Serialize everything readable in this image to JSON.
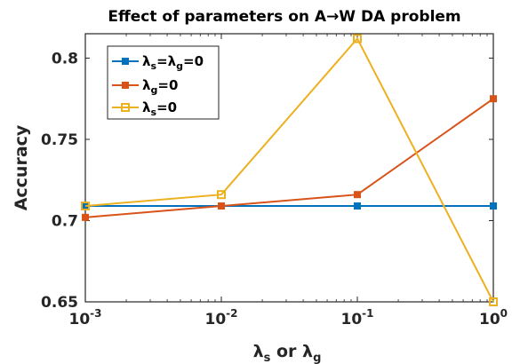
{
  "chart_data": {
    "type": "line",
    "title": "Effect of parameters on A→W DA problem",
    "xlabel": {
      "base": "λ",
      "sub1": "s",
      "mid": " or ",
      "base2": "λ",
      "sub2": "g"
    },
    "ylabel": "Accuracy",
    "x_scale": "log",
    "x": [
      0.001,
      0.01,
      0.1,
      1
    ],
    "x_tick_labels": [
      {
        "base": "10",
        "exp": "-3"
      },
      {
        "base": "10",
        "exp": "-2"
      },
      {
        "base": "10",
        "exp": "-1"
      },
      {
        "base": "10",
        "exp": "0"
      }
    ],
    "xlim": [
      0.001,
      1
    ],
    "ylim": [
      0.65,
      0.815
    ],
    "y_ticks": [
      0.65,
      0.7,
      0.75,
      0.8
    ],
    "y_tick_labels": [
      "0.65",
      "0.7",
      "0.75",
      "0.8"
    ],
    "grid": false,
    "legend_position": "top-left",
    "series": [
      {
        "legend": {
          "base": "λ",
          "sub1": "s",
          "eq": "=",
          "base2": "λ",
          "sub2": "g",
          "tail": "=0"
        },
        "color": "#0072BD",
        "values": [
          0.709,
          0.709,
          0.709,
          0.709
        ]
      },
      {
        "legend": {
          "base": "λ",
          "sub1": "g",
          "tail": "=0"
        },
        "color": "#D95319",
        "values": [
          0.702,
          0.709,
          0.716,
          0.775
        ]
      },
      {
        "legend": {
          "base": "λ",
          "sub1": "s",
          "tail": "=0"
        },
        "color": "#EDB120",
        "values": [
          0.709,
          0.716,
          0.812,
          0.65
        ]
      }
    ]
  }
}
